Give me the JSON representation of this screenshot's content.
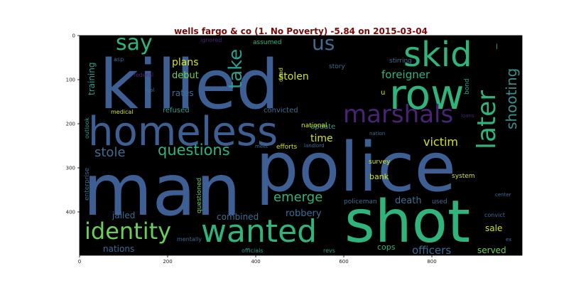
{
  "chart_data": {
    "type": "wordcloud",
    "title": "wells fargo & co (1. No Poverty) -5.84 on 2015-03-04",
    "x_ticks": [
      "0",
      "200",
      "400",
      "600",
      "800"
    ],
    "y_ticks": [
      "0",
      "100",
      "200",
      "300",
      "400"
    ],
    "background": "#000000",
    "words": [
      {
        "text": "killed",
        "color": "#3e5f93"
      },
      {
        "text": "man",
        "color": "#3e5f93"
      },
      {
        "text": "police",
        "color": "#3e5f93"
      },
      {
        "text": "shot",
        "color": "#2fb47c"
      },
      {
        "text": "homeless",
        "color": "#3e5f93"
      },
      {
        "text": "row",
        "color": "#2fb47c"
      },
      {
        "text": "skid",
        "color": "#2fb47c"
      },
      {
        "text": "wanted",
        "color": "#2fb47c"
      },
      {
        "text": "identity",
        "color": "#6ccd5a"
      },
      {
        "text": "marshals",
        "color": "#482475"
      },
      {
        "text": "later",
        "color": "#2fb47c"
      },
      {
        "text": "shooting",
        "color": "#3b8f89"
      },
      {
        "text": "say",
        "color": "#2fb47c"
      },
      {
        "text": "us",
        "color": "#3e6d93"
      },
      {
        "text": "take",
        "color": "#2f9d8e"
      },
      {
        "text": "questions",
        "color": "#2fb47c"
      },
      {
        "text": "stole",
        "color": "#3e6d93"
      },
      {
        "text": "emerge",
        "color": "#2fb47c"
      },
      {
        "text": "foreigner",
        "color": "#2fb47c"
      },
      {
        "text": "victim",
        "color": "#d3e21b"
      },
      {
        "text": "time",
        "color": "#d3e21b"
      },
      {
        "text": "stolen",
        "color": "#d3e21b"
      },
      {
        "text": "plans",
        "color": "#d3e21b"
      },
      {
        "text": "debut",
        "color": "#6ccd5a"
      },
      {
        "text": "rates",
        "color": "#3e6d93"
      },
      {
        "text": "training",
        "color": "#2f9d8e"
      },
      {
        "text": "robbery",
        "color": "#3e6d93"
      },
      {
        "text": "jailed",
        "color": "#3e6d93"
      },
      {
        "text": "combined",
        "color": "#3e6d93"
      },
      {
        "text": "nations",
        "color": "#3e6d93"
      },
      {
        "text": "death",
        "color": "#3e6d93"
      },
      {
        "text": "sale",
        "color": "#d3e21b"
      },
      {
        "text": "officers",
        "color": "#3e6d93"
      },
      {
        "text": "served",
        "color": "#6ccd5a"
      },
      {
        "text": "cops",
        "color": "#2fb47c"
      },
      {
        "text": "bank",
        "color": "#d3e21b"
      },
      {
        "text": "update",
        "color": "#2f9d8e"
      },
      {
        "text": "convicted",
        "color": "#3e6d93"
      },
      {
        "text": "refused",
        "color": "#2f9d8e"
      },
      {
        "text": "questioned",
        "color": "#6ccd5a"
      },
      {
        "text": "enterprise",
        "color": "#3e6d93"
      },
      {
        "text": "outlook",
        "color": "#2f9d8e"
      },
      {
        "text": "national",
        "color": "#d3e21b"
      },
      {
        "text": "survey",
        "color": "#d3e21b"
      },
      {
        "text": "system",
        "color": "#d3e21b"
      },
      {
        "text": "policeman",
        "color": "#3e6d93"
      },
      {
        "text": "used",
        "color": "#3e6d93"
      },
      {
        "text": "efforts",
        "color": "#d3e21b"
      },
      {
        "text": "bond",
        "color": "#2f9d8e"
      },
      {
        "text": "story",
        "color": "#3e6d93"
      },
      {
        "text": "stirring",
        "color": "#3e6d93"
      },
      {
        "text": "assumed",
        "color": "#2fb47c"
      },
      {
        "text": "ignored",
        "color": "#482475"
      },
      {
        "text": "asp",
        "color": "#3e6d93"
      },
      {
        "text": "federal",
        "color": "#482475"
      },
      {
        "text": "real",
        "color": "#3e6d93"
      },
      {
        "text": "medical",
        "color": "#d3e21b"
      },
      {
        "text": "dead",
        "color": "#d3e21b"
      },
      {
        "text": "meet",
        "color": "#3e6d93"
      },
      {
        "text": "landlord",
        "color": "#3e6d93"
      },
      {
        "text": "mentally",
        "color": "#3e6d93"
      },
      {
        "text": "officials",
        "color": "#2f9d8e"
      },
      {
        "text": "revs",
        "color": "#2f9d8e"
      },
      {
        "text": "convict",
        "color": "#3e6d93"
      },
      {
        "text": "center",
        "color": "#3e6d93"
      },
      {
        "text": "ex",
        "color": "#3e6d93"
      },
      {
        "text": "nation",
        "color": "#3e6d93"
      },
      {
        "text": "loans",
        "color": "#482475"
      },
      {
        "text": "u",
        "color": "#d3e21b"
      },
      {
        "text": "l",
        "color": "#2fb47c"
      }
    ]
  }
}
